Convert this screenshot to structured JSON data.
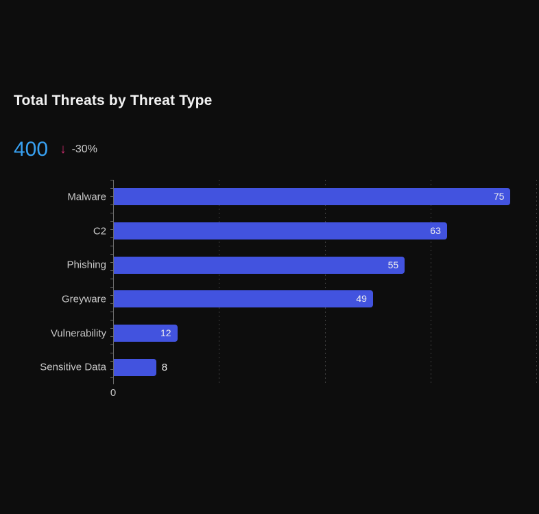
{
  "page": {
    "background_color": "#0d0d0d"
  },
  "kpi": {
    "value": "400",
    "value_color": "#38a1f2",
    "trend_icon": "down-arrow-icon",
    "trend_arrow_glyph": "↓",
    "trend_color": "#ce2d6f",
    "delta": "-30%",
    "delta_color": "#cfcfcf"
  },
  "chart_data": {
    "type": "bar",
    "orientation": "horizontal",
    "title": "Total Threats by Threat Type",
    "categories": [
      "Malware",
      "C2",
      "Phishing",
      "Greyware",
      "Vulnerability",
      "Sensitive Data"
    ],
    "values": [
      75,
      63,
      55,
      49,
      12,
      8
    ],
    "xlabel": "",
    "ylabel": "",
    "xlim": [
      0,
      80
    ],
    "gridline_values": [
      20,
      40,
      60,
      80
    ],
    "grid_style": "dotted-vertical",
    "axis_tick_labels_visible": [
      "0"
    ],
    "zero_tick_label": "0",
    "bar_color": "#4253df",
    "value_label_color": "#f0f0f0",
    "category_label_color": "#c9c9c9",
    "legend": "none"
  }
}
